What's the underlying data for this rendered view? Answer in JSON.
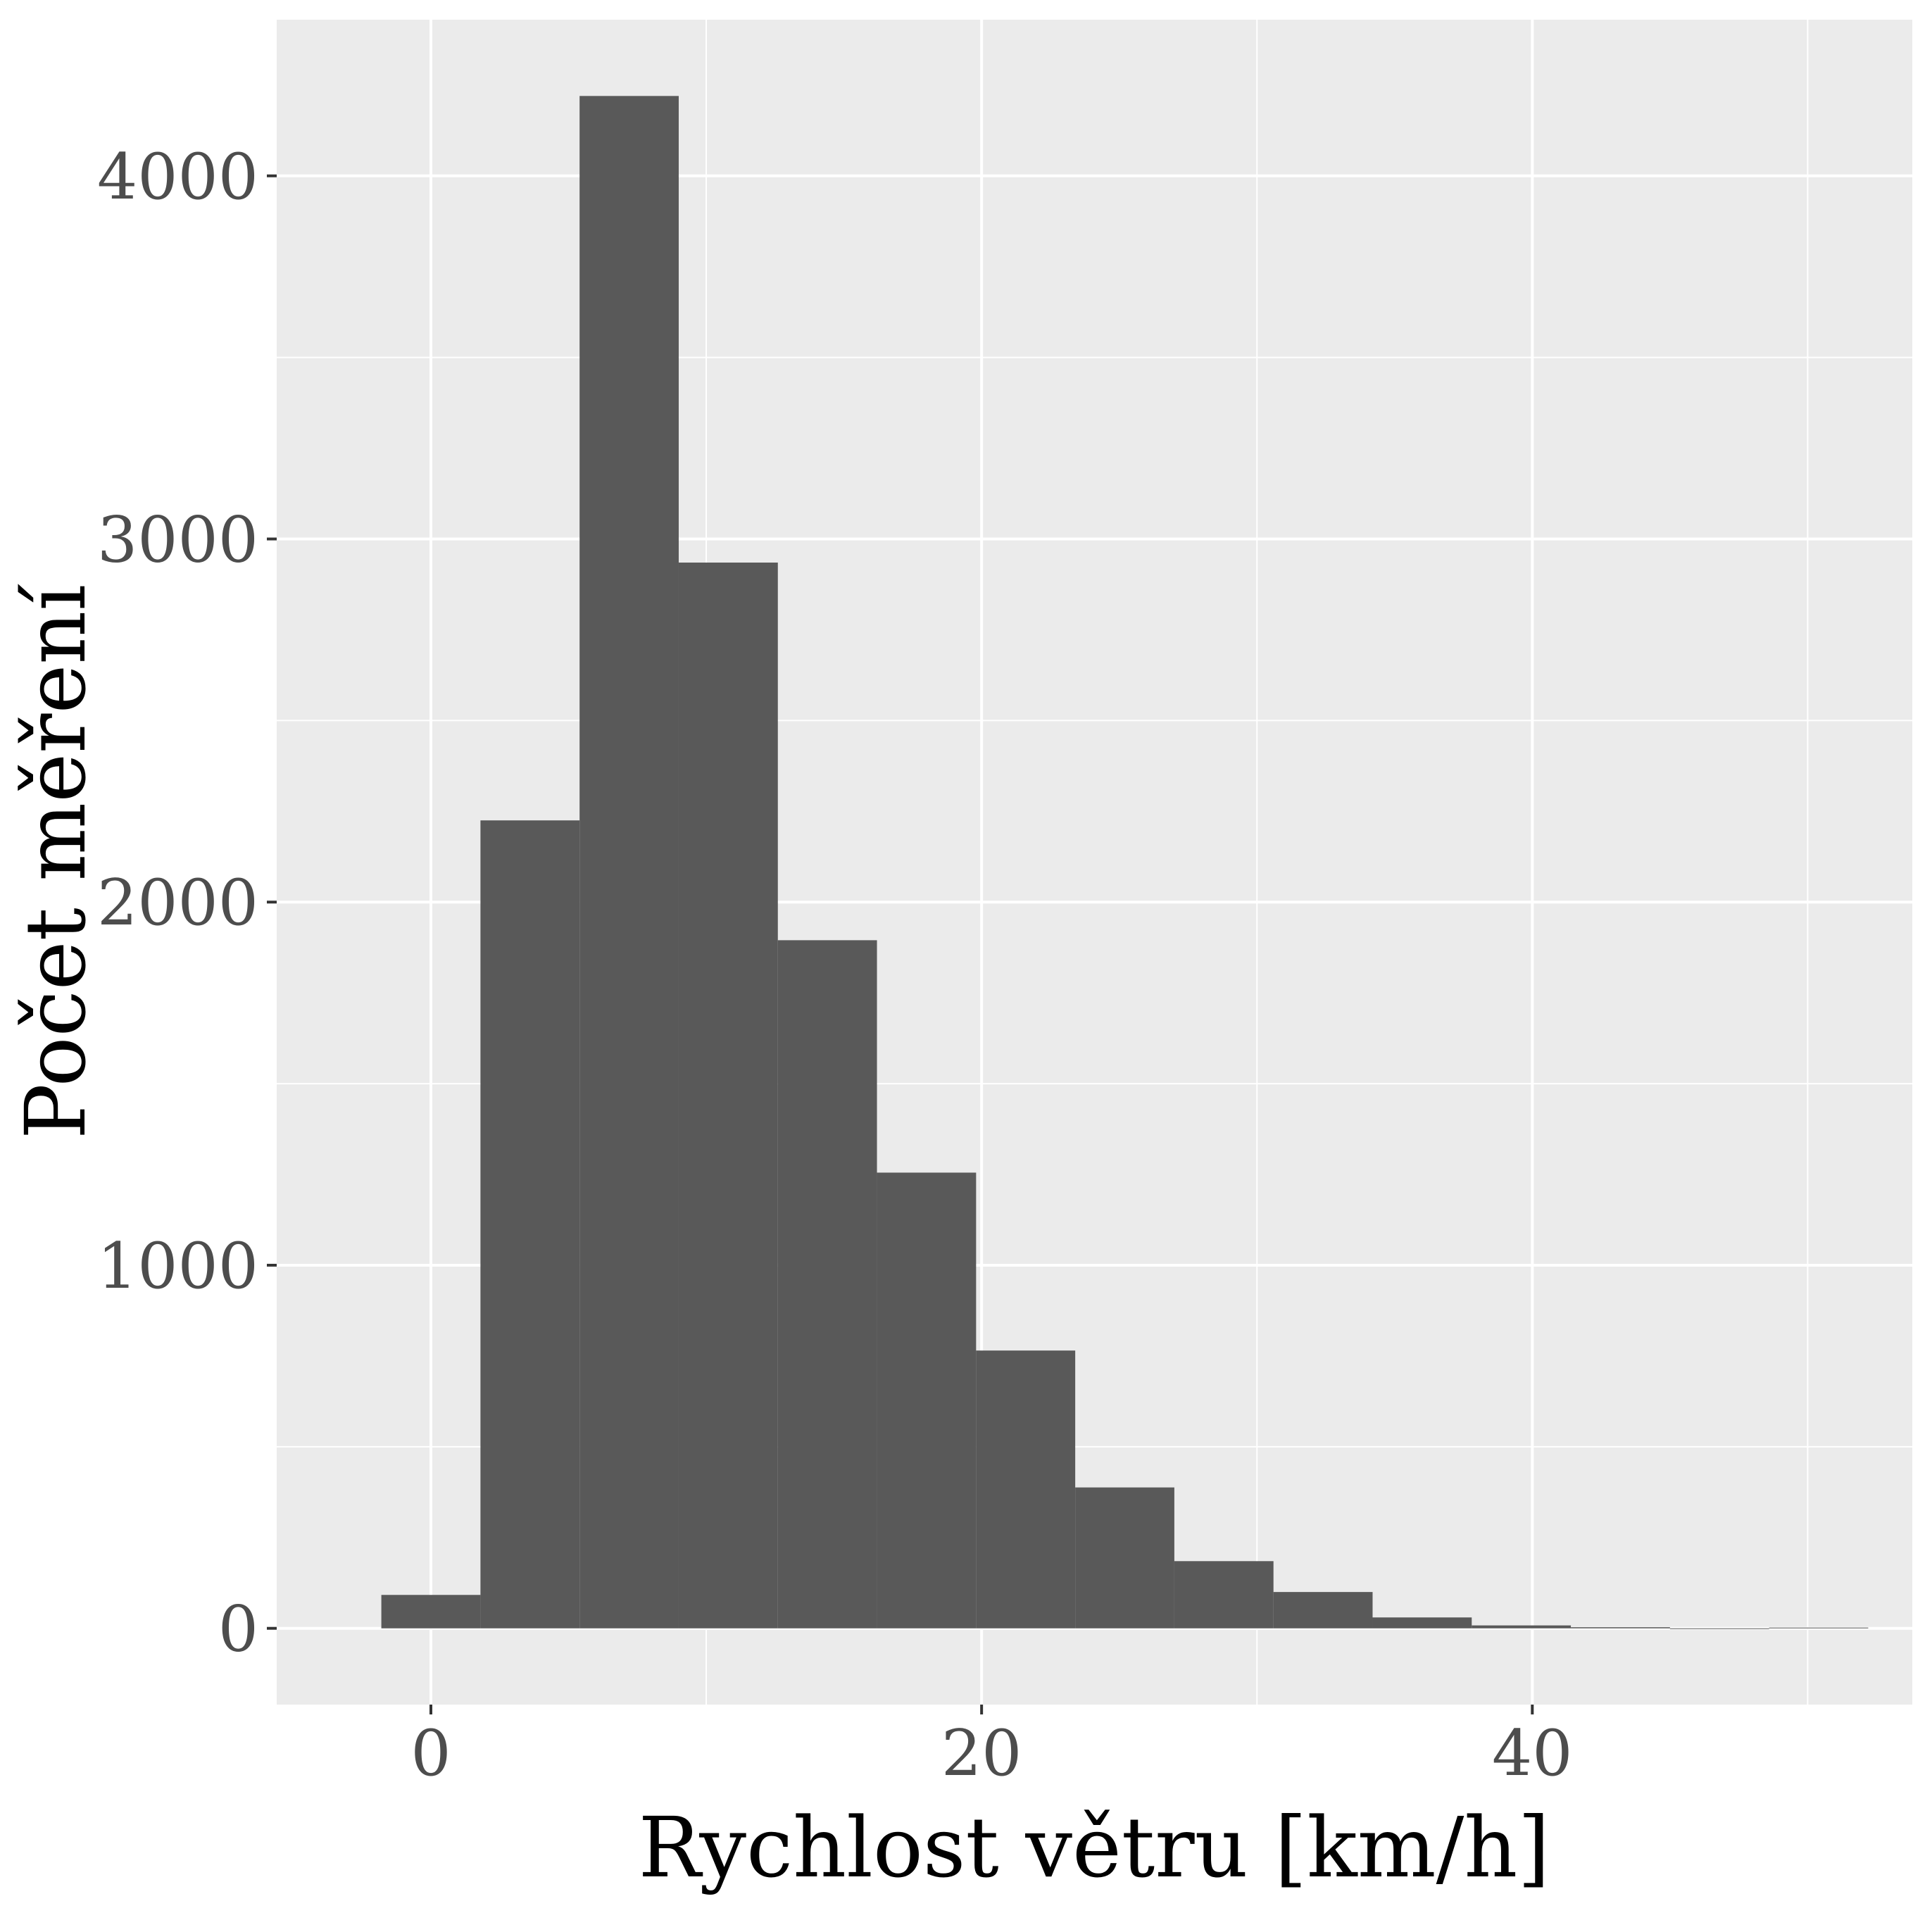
{
  "chart_data": {
    "type": "bar",
    "subtype": "histogram",
    "title": "",
    "xlabel": "Rychlost větru [km/h]",
    "ylabel": "Počet měření",
    "xlim": [
      -5.6,
      53.8
    ],
    "ylim": [
      -210,
      4430
    ],
    "x_ticks": [
      0,
      20,
      40
    ],
    "y_ticks": [
      0,
      1000,
      2000,
      3000,
      4000
    ],
    "x_ticks_minor": [
      10,
      30,
      50
    ],
    "y_ticks_minor": [
      500,
      1500,
      2500,
      3500
    ],
    "grid": true,
    "legend": "none",
    "bins": [
      {
        "x0": -1.8,
        "x1": 1.8,
        "count": 92
      },
      {
        "x0": 1.8,
        "x1": 5.4,
        "count": 2225
      },
      {
        "x0": 5.4,
        "x1": 9.0,
        "count": 4220
      },
      {
        "x0": 9.0,
        "x1": 12.6,
        "count": 2935
      },
      {
        "x0": 12.6,
        "x1": 16.2,
        "count": 1895
      },
      {
        "x0": 16.2,
        "x1": 19.8,
        "count": 1255
      },
      {
        "x0": 19.8,
        "x1": 23.4,
        "count": 765
      },
      {
        "x0": 23.4,
        "x1": 27.0,
        "count": 388
      },
      {
        "x0": 27.0,
        "x1": 30.6,
        "count": 185
      },
      {
        "x0": 30.6,
        "x1": 34.2,
        "count": 100
      },
      {
        "x0": 34.2,
        "x1": 37.8,
        "count": 30
      },
      {
        "x0": 37.8,
        "x1": 41.4,
        "count": 8
      },
      {
        "x0": 41.4,
        "x1": 45.0,
        "count": 3
      },
      {
        "x0": 45.0,
        "x1": 48.6,
        "count": 0
      },
      {
        "x0": 48.6,
        "x1": 52.2,
        "count": 2
      }
    ],
    "colors": {
      "panel_background": "#ebebeb",
      "grid": "#ffffff",
      "bar_fill": "#595959",
      "tick_text": "#4d4d4d",
      "axis_title": "#000000",
      "tick_mark": "#333333"
    }
  }
}
